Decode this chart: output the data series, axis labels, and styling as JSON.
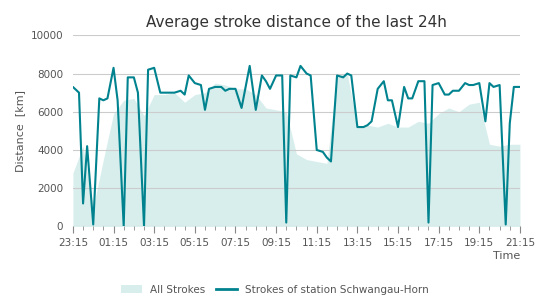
{
  "title": "Average stroke distance of the last 24h",
  "xlabel": "Time",
  "ylabel": "Distance  [km]",
  "ylim": [
    0,
    10000
  ],
  "yticks": [
    0,
    2000,
    4000,
    6000,
    8000,
    10000
  ],
  "xtick_labels": [
    "23:15",
    "01:15",
    "03:15",
    "05:15",
    "07:15",
    "09:15",
    "11:15",
    "13:15",
    "15:15",
    "17:15",
    "19:15",
    "21:15"
  ],
  "fill_color": "#b2dfdb",
  "fill_alpha": 0.5,
  "line_color": "#00838f",
  "line_width": 1.5,
  "grid_color": "#cccccc",
  "bg_color": "#ffffff",
  "legend_fill_label": "All Strokes",
  "legend_line_label": "Strokes of station Schwangau-Horn",
  "title_fontsize": 11,
  "axis_label_fontsize": 8,
  "tick_fontsize": 7.5,
  "fill_x": [
    0,
    0.5,
    1,
    1.5,
    2,
    2.5,
    3,
    3.5,
    4,
    4.5,
    5,
    5.5,
    6,
    6.5,
    7,
    7.5,
    8,
    8.5,
    9,
    9.5,
    10,
    10.5,
    11,
    11.5,
    12,
    12.5,
    13,
    13.5,
    14,
    14.5,
    15,
    15.5,
    16,
    16.5,
    17,
    17.5,
    18,
    18.5,
    19,
    19.5,
    20,
    20.5,
    21,
    21.5,
    22
  ],
  "fill_y": [
    2800,
    4200,
    1000,
    3500,
    5900,
    6600,
    6700,
    5800,
    6900,
    6900,
    7000,
    6500,
    6900,
    7000,
    7500,
    7400,
    7200,
    7200,
    6900,
    6200,
    6100,
    6000,
    3800,
    3500,
    3400,
    3300,
    7900,
    8000,
    5200,
    5300,
    5200,
    5400,
    5200,
    5200,
    5500,
    5400,
    5900,
    6200,
    6000,
    6400,
    6500,
    4300,
    4200,
    4300,
    4300
  ],
  "line_x": [
    0,
    0.3,
    0.5,
    0.7,
    1.0,
    1.3,
    1.5,
    1.7,
    2.0,
    2.2,
    2.5,
    2.7,
    3.0,
    3.2,
    3.5,
    3.7,
    4.0,
    4.3,
    4.5,
    4.7,
    5.0,
    5.3,
    5.5,
    5.7,
    6.0,
    6.3,
    6.5,
    6.7,
    7.0,
    7.3,
    7.5,
    7.7,
    8.0,
    8.3,
    8.5,
    8.7,
    9.0,
    9.3,
    9.5,
    9.7,
    10.0,
    10.3,
    10.5,
    10.7,
    11.0,
    11.2,
    11.5,
    11.7,
    12.0,
    12.3,
    12.5,
    12.7,
    13.0,
    13.3,
    13.5,
    13.7,
    14.0,
    14.3,
    14.5,
    14.7,
    15.0,
    15.3,
    15.5,
    15.7,
    16.0,
    16.3,
    16.5,
    16.7,
    17.0,
    17.3,
    17.5,
    17.7,
    18.0,
    18.3,
    18.5,
    18.7,
    19.0,
    19.3,
    19.5,
    19.7,
    20.0,
    20.3,
    20.5,
    20.7,
    21.0,
    21.3,
    21.5,
    21.7,
    22.0
  ],
  "line_y": [
    7300,
    7000,
    1200,
    4200,
    100,
    6700,
    6600,
    6700,
    8300,
    6600,
    0,
    7800,
    7800,
    7000,
    0,
    8200,
    8300,
    7000,
    7000,
    7000,
    7000,
    7100,
    6900,
    7900,
    7500,
    7400,
    6100,
    7200,
    7300,
    7300,
    7100,
    7200,
    7200,
    6200,
    7300,
    8400,
    6100,
    7900,
    7600,
    7200,
    7900,
    7900,
    200,
    7900,
    7800,
    8400,
    8000,
    7900,
    4000,
    3900,
    3600,
    3400,
    7900,
    7800,
    8000,
    7900,
    5200,
    5200,
    5300,
    5500,
    7200,
    7600,
    6600,
    6600,
    5200,
    7300,
    6700,
    6700,
    7600,
    7600,
    200,
    7400,
    7500,
    6900,
    6900,
    7100,
    7100,
    7500,
    7400,
    7400,
    7500,
    5500,
    7500,
    7300,
    7400,
    100,
    5400,
    7300,
    7300
  ]
}
